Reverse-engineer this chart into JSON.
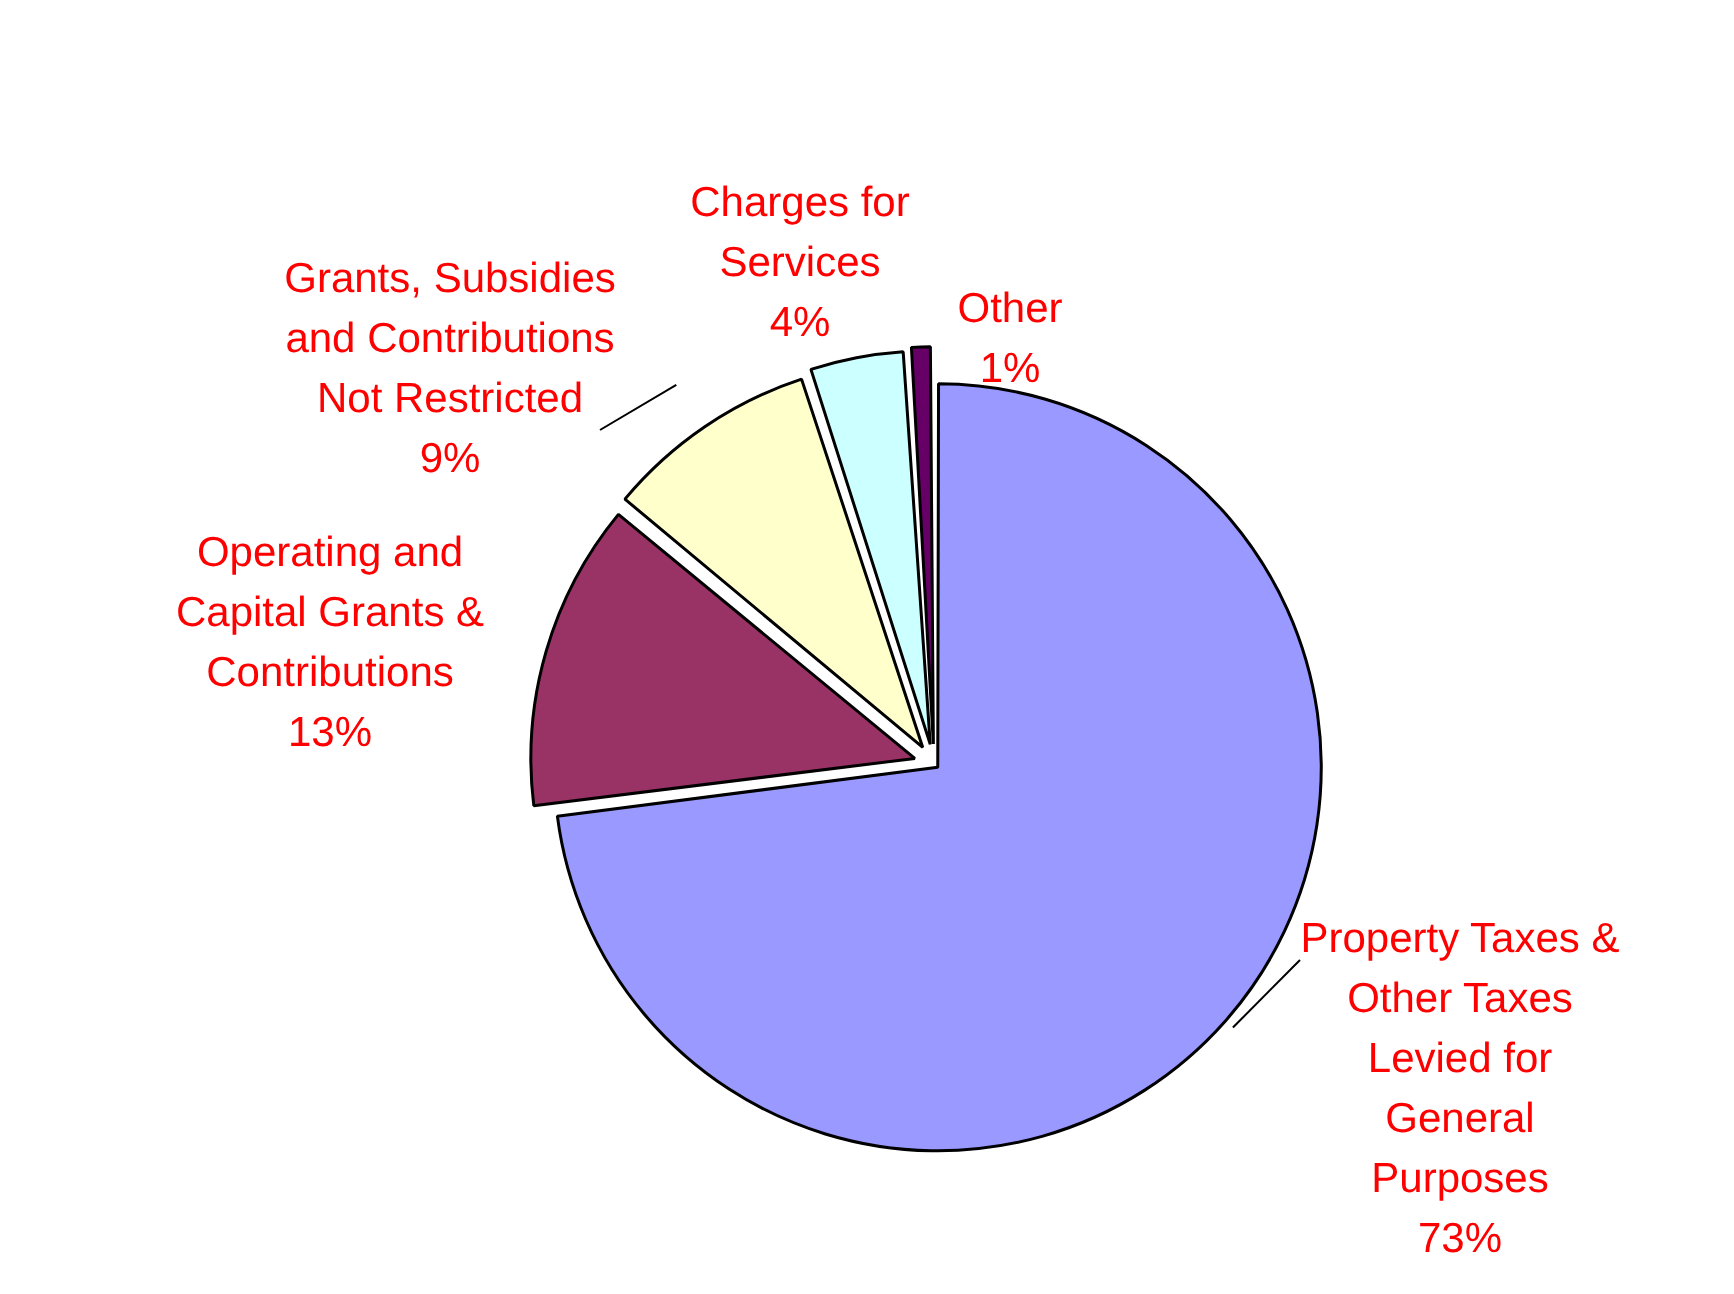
{
  "chart_data": {
    "type": "pie",
    "categories": [
      "Property Taxes & Other Taxes Levied for General Purposes",
      "Operating and Capital Grants & Contributions",
      "Grants, Subsidies and Contributions Not Restricted",
      "Charges for Services",
      "Other"
    ],
    "values": [
      73,
      13,
      9,
      4,
      1
    ],
    "value_labels": [
      "73%",
      "13%",
      "9%",
      "4%",
      "1%"
    ],
    "colors": [
      "#9999ff",
      "#993366",
      "#ffffcc",
      "#ccffff",
      "#660066"
    ],
    "legend": false
  }
}
